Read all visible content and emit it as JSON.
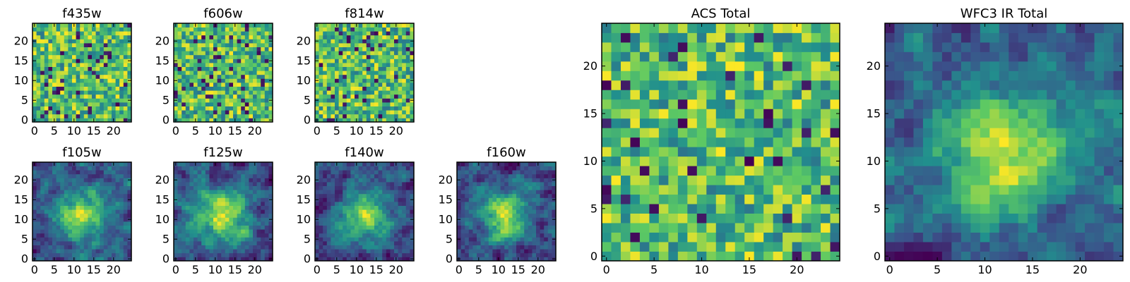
{
  "palette": [
    "#440154",
    "#3b528b",
    "#21908d",
    "#5dc963",
    "#fde725"
  ],
  "chart_data": [
    {
      "type": "heatmap",
      "title": "f435w",
      "xlim": [
        0,
        24
      ],
      "ylim": [
        0,
        24
      ],
      "xticks": [
        0,
        5,
        10,
        15,
        20
      ],
      "yticks": [
        0,
        5,
        10,
        15,
        20
      ],
      "colormap": "viridis",
      "pattern": "noise",
      "seed": 11
    },
    {
      "type": "heatmap",
      "title": "f606w",
      "xlim": [
        0,
        24
      ],
      "ylim": [
        0,
        24
      ],
      "xticks": [
        0,
        5,
        10,
        15,
        20
      ],
      "yticks": [
        0,
        5,
        10,
        15,
        20
      ],
      "colormap": "viridis",
      "pattern": "noise",
      "seed": 23
    },
    {
      "type": "heatmap",
      "title": "f814w",
      "xlim": [
        0,
        24
      ],
      "ylim": [
        0,
        24
      ],
      "xticks": [
        0,
        5,
        10,
        15,
        20
      ],
      "yticks": [
        0,
        5,
        10,
        15,
        20
      ],
      "colormap": "viridis",
      "pattern": "noise",
      "seed": 37
    },
    {
      "type": "heatmap",
      "title": "f105w",
      "xlim": [
        0,
        24
      ],
      "ylim": [
        0,
        24
      ],
      "xticks": [
        0,
        5,
        10,
        15,
        20
      ],
      "yticks": [
        0,
        5,
        10,
        15,
        20
      ],
      "colormap": "viridis",
      "pattern": "blob",
      "seed": 41
    },
    {
      "type": "heatmap",
      "title": "f125w",
      "xlim": [
        0,
        24
      ],
      "ylim": [
        0,
        24
      ],
      "xticks": [
        0,
        5,
        10,
        15,
        20
      ],
      "yticks": [
        0,
        5,
        10,
        15,
        20
      ],
      "colormap": "viridis",
      "pattern": "blob",
      "seed": 53
    },
    {
      "type": "heatmap",
      "title": "f140w",
      "xlim": [
        0,
        24
      ],
      "ylim": [
        0,
        24
      ],
      "xticks": [
        0,
        5,
        10,
        15,
        20
      ],
      "yticks": [
        0,
        5,
        10,
        15,
        20
      ],
      "colormap": "viridis",
      "pattern": "blob",
      "seed": 67
    },
    {
      "type": "heatmap",
      "title": "f160w",
      "xlim": [
        0,
        24
      ],
      "ylim": [
        0,
        24
      ],
      "xticks": [
        0,
        5,
        10,
        15,
        20
      ],
      "yticks": [
        0,
        5,
        10,
        15,
        20
      ],
      "colormap": "viridis",
      "pattern": "blob",
      "seed": 71
    },
    {
      "type": "heatmap",
      "title": "ACS Total",
      "xlim": [
        0,
        24
      ],
      "ylim": [
        0,
        24
      ],
      "xticks": [
        0,
        5,
        10,
        15,
        20
      ],
      "yticks": [
        0,
        5,
        10,
        15,
        20
      ],
      "colormap": "viridis",
      "pattern": "noise",
      "seed": 89
    },
    {
      "type": "heatmap",
      "title": "WFC3 IR Total",
      "xlim": [
        0,
        24
      ],
      "ylim": [
        0,
        24
      ],
      "xticks": [
        0,
        5,
        10,
        15,
        20
      ],
      "yticks": [
        0,
        5,
        10,
        15,
        20
      ],
      "colormap": "viridis",
      "pattern": "blob",
      "seed": 97
    }
  ]
}
